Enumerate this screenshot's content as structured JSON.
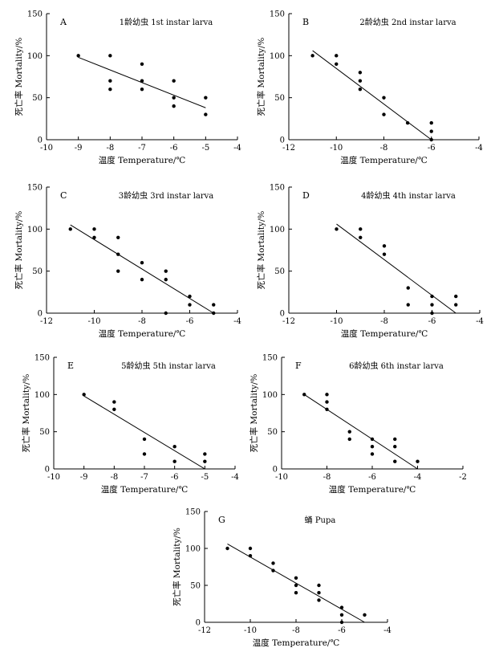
{
  "chart_data": [
    {
      "type": "scatter",
      "panel": "A",
      "title": "1龄幼虫 1st instar larva",
      "xlabel": "温度 Temperature/℃",
      "ylabel": "死亡率 Mortality/%",
      "xlim": [
        -10,
        -4
      ],
      "ylim": [
        0,
        150
      ],
      "xticks": [
        -10,
        -9,
        -8,
        -7,
        -6,
        -5,
        -4
      ],
      "yticks": [
        0,
        50,
        100,
        150
      ],
      "points": [
        [
          -9,
          100
        ],
        [
          -8,
          100
        ],
        [
          -8,
          70
        ],
        [
          -8,
          60
        ],
        [
          -7,
          90
        ],
        [
          -7,
          70
        ],
        [
          -7,
          60
        ],
        [
          -6,
          70
        ],
        [
          -6,
          50
        ],
        [
          -6,
          40
        ],
        [
          -5,
          50
        ],
        [
          -5,
          30
        ]
      ],
      "fit_line": [
        [
          -9,
          98
        ],
        [
          -5,
          38
        ]
      ]
    },
    {
      "type": "scatter",
      "panel": "B",
      "title": "2龄幼虫 2nd instar larva",
      "xlabel": "温度 Temperature/℃",
      "ylabel": "死亡率 Mortality/%",
      "xlim": [
        -12,
        -4
      ],
      "ylim": [
        0,
        150
      ],
      "xticks": [
        -12,
        -10,
        -8,
        -6,
        -4
      ],
      "yticks": [
        0,
        50,
        100,
        150
      ],
      "points": [
        [
          -11,
          100
        ],
        [
          -10,
          100
        ],
        [
          -10,
          90
        ],
        [
          -9,
          80
        ],
        [
          -9,
          70
        ],
        [
          -9,
          60
        ],
        [
          -8,
          50
        ],
        [
          -8,
          30
        ],
        [
          -7,
          20
        ],
        [
          -6,
          20
        ],
        [
          -6,
          10
        ],
        [
          -6,
          0
        ]
      ],
      "fit_line": [
        [
          -11,
          106
        ],
        [
          -6,
          0
        ]
      ]
    },
    {
      "type": "scatter",
      "panel": "C",
      "title": "3龄幼虫 3rd instar larva",
      "xlabel": "温度 Temperature/℃",
      "ylabel": "死亡率 Mortality/%",
      "xlim": [
        -12,
        -4
      ],
      "ylim": [
        0,
        150
      ],
      "xticks": [
        -12,
        -10,
        -8,
        -6,
        -4
      ],
      "yticks": [
        0,
        50,
        100,
        150
      ],
      "points": [
        [
          -11,
          100
        ],
        [
          -10,
          100
        ],
        [
          -10,
          90
        ],
        [
          -9,
          90
        ],
        [
          -9,
          70
        ],
        [
          -9,
          50
        ],
        [
          -8,
          60
        ],
        [
          -8,
          40
        ],
        [
          -7,
          50
        ],
        [
          -7,
          40
        ],
        [
          -7,
          0
        ],
        [
          -6,
          20
        ],
        [
          -6,
          10
        ],
        [
          -5,
          10
        ],
        [
          -5,
          0
        ]
      ],
      "fit_line": [
        [
          -11,
          105
        ],
        [
          -5,
          0
        ]
      ]
    },
    {
      "type": "scatter",
      "panel": "D",
      "title": "4龄幼虫 4th instar larva",
      "xlabel": "温度 Temperature/℃",
      "ylabel": "死亡率 Mortality/%",
      "xlim": [
        -12,
        -4
      ],
      "ylim": [
        0,
        150
      ],
      "xticks": [
        -12,
        -10,
        -8,
        -6,
        -4
      ],
      "yticks": [
        0,
        50,
        100,
        150
      ],
      "points": [
        [
          -10,
          100
        ],
        [
          -9,
          100
        ],
        [
          -9,
          90
        ],
        [
          -8,
          80
        ],
        [
          -8,
          70
        ],
        [
          -7,
          30
        ],
        [
          -7,
          10
        ],
        [
          -6,
          20
        ],
        [
          -6,
          10
        ],
        [
          -6,
          0
        ],
        [
          -5,
          20
        ],
        [
          -5,
          10
        ]
      ],
      "fit_line": [
        [
          -10,
          106
        ],
        [
          -5,
          0
        ]
      ]
    },
    {
      "type": "scatter",
      "panel": "E",
      "title": "5龄幼虫 5th instar larva",
      "xlabel": "温度 Temperature/℃",
      "ylabel": "死亡率 Mortality/%",
      "xlim": [
        -10,
        -4
      ],
      "ylim": [
        0,
        150
      ],
      "xticks": [
        -10,
        -9,
        -8,
        -7,
        -6,
        -5,
        -4
      ],
      "yticks": [
        0,
        50,
        100,
        150
      ],
      "points": [
        [
          -9,
          100
        ],
        [
          -8,
          90
        ],
        [
          -8,
          80
        ],
        [
          -7,
          40
        ],
        [
          -7,
          20
        ],
        [
          -6,
          30
        ],
        [
          -6,
          10
        ],
        [
          -5,
          20
        ],
        [
          -5,
          10
        ]
      ],
      "fit_line": [
        [
          -9,
          98
        ],
        [
          -5,
          0
        ]
      ]
    },
    {
      "type": "scatter",
      "panel": "F",
      "title": "6龄幼虫 6th instar larva",
      "xlabel": "温度 Temperature/℃",
      "ylabel": "死亡率 Mortality/%",
      "xlim": [
        -10,
        -2
      ],
      "ylim": [
        0,
        150
      ],
      "xticks": [
        -10,
        -8,
        -6,
        -4,
        -2
      ],
      "yticks": [
        0,
        50,
        100,
        150
      ],
      "points": [
        [
          -9,
          100
        ],
        [
          -8,
          100
        ],
        [
          -8,
          90
        ],
        [
          -8,
          80
        ],
        [
          -7,
          50
        ],
        [
          -7,
          40
        ],
        [
          -6,
          40
        ],
        [
          -6,
          30
        ],
        [
          -6,
          20
        ],
        [
          -5,
          40
        ],
        [
          -5,
          30
        ],
        [
          -5,
          10
        ],
        [
          -4,
          10
        ]
      ],
      "fit_line": [
        [
          -9,
          100
        ],
        [
          -4,
          0
        ]
      ]
    },
    {
      "type": "scatter",
      "panel": "G",
      "title": "蛹 Pupa",
      "xlabel": "温度 Temperature/℃",
      "ylabel": "死亡率 Mortality/%",
      "xlim": [
        -12,
        -4
      ],
      "ylim": [
        0,
        150
      ],
      "xticks": [
        -12,
        -10,
        -8,
        -6,
        -4
      ],
      "yticks": [
        0,
        50,
        100,
        150
      ],
      "points": [
        [
          -11,
          100
        ],
        [
          -10,
          100
        ],
        [
          -10,
          90
        ],
        [
          -9,
          80
        ],
        [
          -9,
          70
        ],
        [
          -8,
          60
        ],
        [
          -8,
          50
        ],
        [
          -8,
          40
        ],
        [
          -7,
          50
        ],
        [
          -7,
          40
        ],
        [
          -7,
          30
        ],
        [
          -6,
          20
        ],
        [
          -6,
          10
        ],
        [
          -6,
          0
        ],
        [
          -5,
          10
        ]
      ],
      "fit_line": [
        [
          -11,
          106
        ],
        [
          -5,
          0
        ]
      ]
    }
  ]
}
